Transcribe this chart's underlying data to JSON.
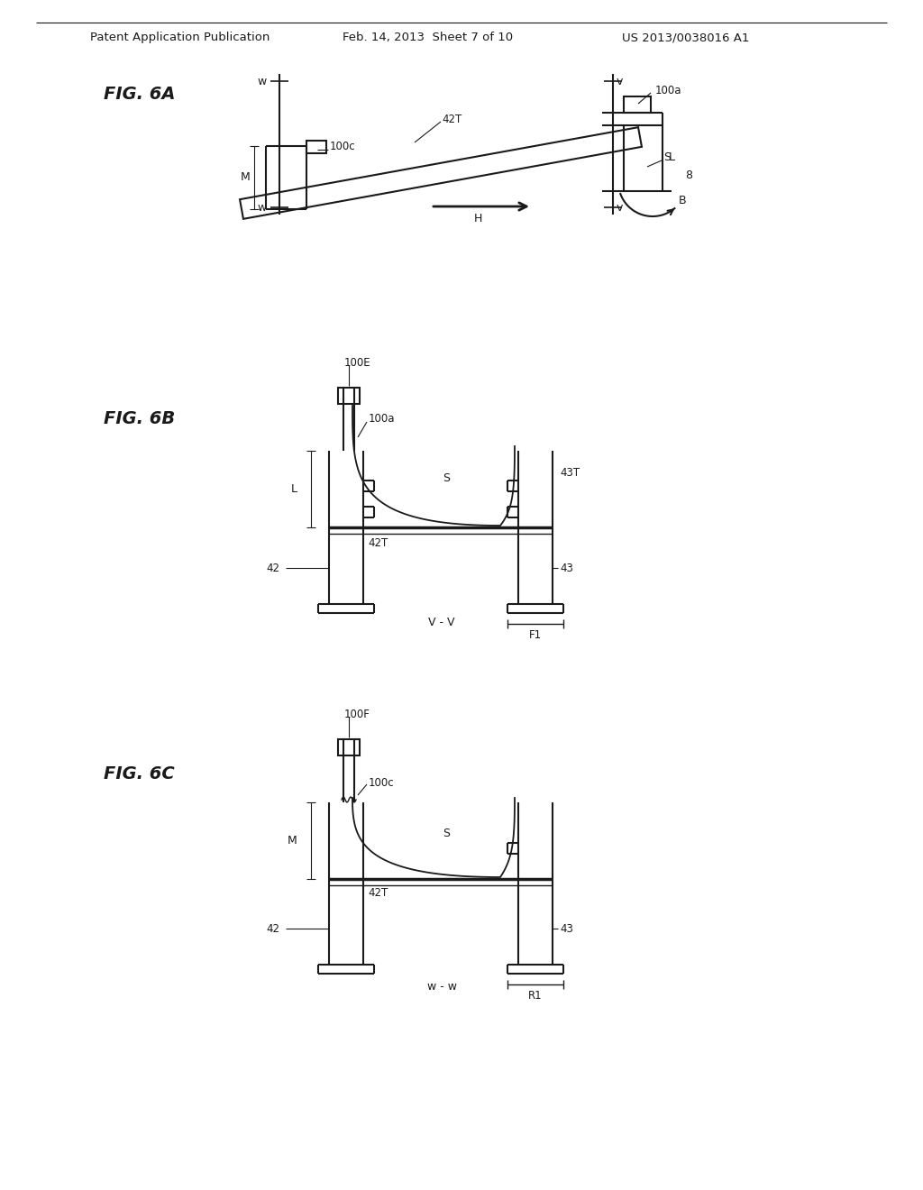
{
  "bg_color": "#ffffff",
  "line_color": "#1a1a1a",
  "header_left": "Patent Application Publication",
  "header_mid": "Feb. 14, 2013  Sheet 7 of 10",
  "header_right": "US 2013/0038016 A1",
  "fig6a_label": "FIG. 6A",
  "fig6b_label": "FIG. 6B",
  "fig6c_label": "FIG. 6C"
}
